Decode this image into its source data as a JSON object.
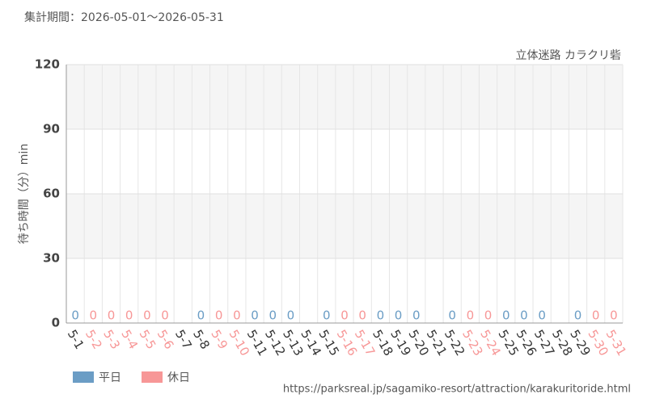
{
  "chart_data": {
    "type": "bar",
    "title": "集計期間：2026-05-01〜2026-05-31",
    "subtitle": "立体迷路 カラクリ砦",
    "y_label": "待ち時間（分）min",
    "source": "https://parksreal.jp/sagamiko-resort/attraction/karakuritoride.html",
    "categories": [
      "5-1",
      "5-2",
      "5-3",
      "5-4",
      "5-5",
      "5-6",
      "5-7",
      "5-8",
      "5-9",
      "5-10",
      "5-11",
      "5-12",
      "5-13",
      "5-14",
      "5-15",
      "5-16",
      "5-17",
      "5-18",
      "5-19",
      "5-20",
      "5-21",
      "5-22",
      "5-23",
      "5-24",
      "5-25",
      "5-26",
      "5-27",
      "5-28",
      "5-29",
      "5-30",
      "5-31"
    ],
    "series": [
      {
        "name": "平日",
        "color": "#6b9dc5",
        "values": [
          0,
          null,
          null,
          null,
          null,
          null,
          null,
          0,
          null,
          null,
          0,
          0,
          0,
          null,
          0,
          null,
          null,
          0,
          0,
          0,
          null,
          0,
          null,
          null,
          0,
          0,
          0,
          null,
          0,
          null,
          null
        ]
      },
      {
        "name": "休日",
        "color": "#f79797",
        "values": [
          null,
          0,
          0,
          0,
          0,
          0,
          null,
          null,
          0,
          0,
          null,
          null,
          null,
          null,
          null,
          0,
          0,
          null,
          null,
          null,
          null,
          null,
          0,
          0,
          null,
          null,
          null,
          null,
          null,
          0,
          0
        ]
      }
    ],
    "ylim": [
      0,
      120
    ],
    "yticks": [
      0,
      30,
      60,
      90,
      120
    ],
    "grid": true,
    "legend": "bottom-left"
  }
}
